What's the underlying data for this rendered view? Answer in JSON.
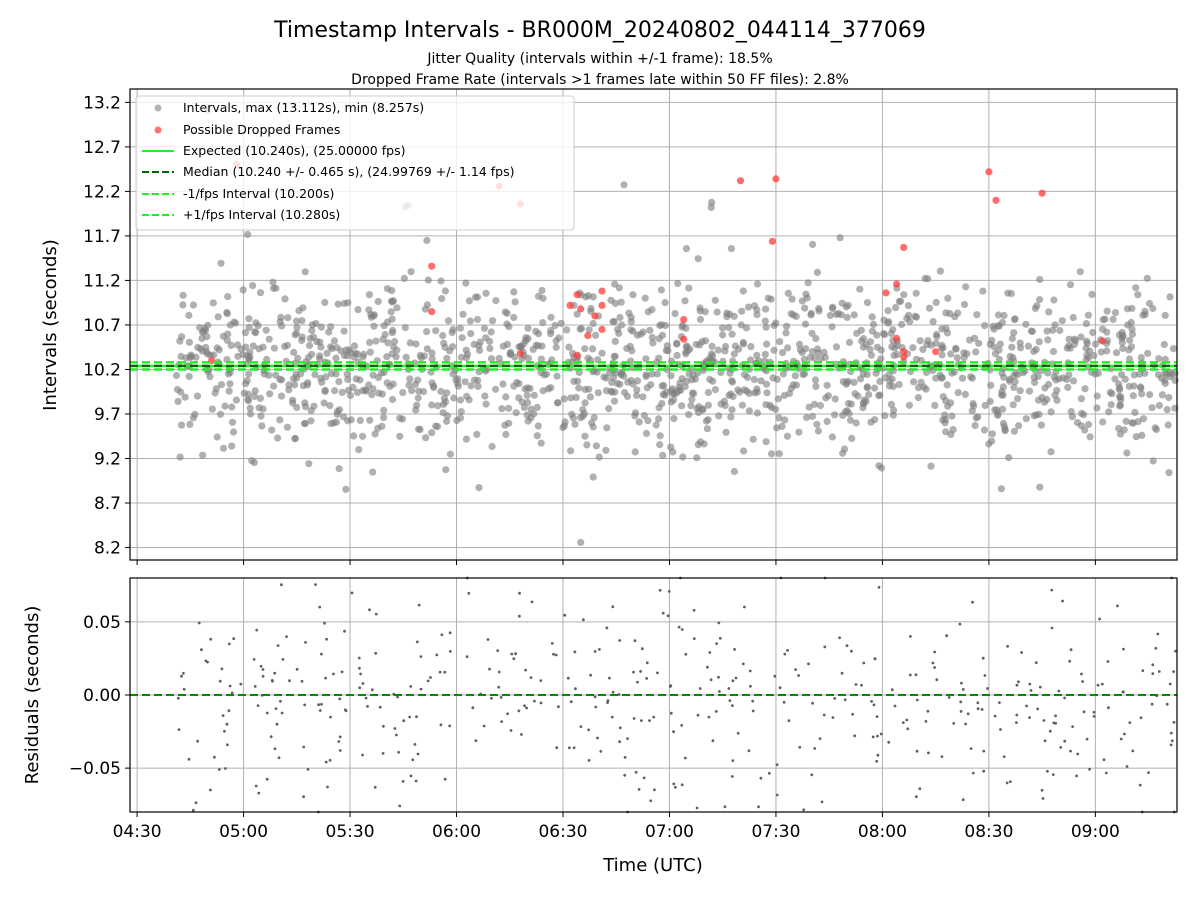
{
  "chart_data": [
    {
      "type": "scatter",
      "panel": "intervals",
      "title": "Timestamp Intervals - BR000M_20240802_044114_377069",
      "subtitle": [
        "Jitter Quality (intervals within +/-1 frame): 18.5%",
        "Dropped Frame Rate (intervals >1 frames late within 50 FF files): 2.8%"
      ],
      "xlabel": "",
      "ylabel": "Intervals (seconds)",
      "x_time_range": [
        "04:28",
        "09:23"
      ],
      "ylim": [
        8.06,
        13.35
      ],
      "yticks": [
        "8.2",
        "8.7",
        "9.2",
        "9.7",
        "10.2",
        "10.7",
        "11.2",
        "11.7",
        "12.2",
        "12.7",
        "13.2"
      ],
      "ytick_values": [
        8.2,
        8.7,
        9.2,
        9.7,
        10.2,
        10.7,
        11.2,
        11.7,
        12.2,
        12.7,
        13.2
      ],
      "grid": true,
      "legend_position": "top-left",
      "legend": [
        {
          "label": "Intervals, max (13.112s), min (8.257s)",
          "marker": "circle",
          "color": "#808080"
        },
        {
          "label": "Possible Dropped Frames",
          "marker": "circle",
          "color": "#ff3b3b"
        },
        {
          "label": "Expected (10.240s), (25.00000 fps)",
          "line": "solid",
          "color": "#22ee22"
        },
        {
          "label": "Median (10.240 +/- 0.465 s), (24.99769 +/- 1.14 fps)",
          "line": "dashed",
          "color": "#006400"
        },
        {
          "label": "-1/fps Interval (10.200s)",
          "line": "dashed",
          "color": "#22ee22"
        },
        {
          "label": "+1/fps Interval (10.280s)",
          "line": "dashed",
          "color": "#22ee22"
        }
      ],
      "lines": [
        {
          "name": "Expected",
          "y": 10.24,
          "style": "solid",
          "color": "#22ee22"
        },
        {
          "name": "Median",
          "y": 10.24,
          "style": "dashed",
          "color": "#006400"
        },
        {
          "name": "-1/fps Interval",
          "y": 10.2,
          "style": "dashed",
          "color": "#22ee22"
        },
        {
          "name": "+1/fps Interval",
          "y": 10.28,
          "style": "dashed",
          "color": "#22ee22"
        }
      ],
      "series": [
        {
          "name": "Intervals",
          "color": "#808080",
          "x_range": [
            "04:41",
            "09:23"
          ],
          "y_min": 8.257,
          "y_max": 13.112,
          "center": 10.24,
          "spread": 0.465
        },
        {
          "name": "Possible Dropped Frames",
          "color": "#ff3b3b",
          "points": [
            {
              "x": "04:51",
              "y": 10.3
            },
            {
              "x": "04:58",
              "y": 12.5
            },
            {
              "x": "05:53",
              "y": 11.36
            },
            {
              "x": "05:53",
              "y": 10.85
            },
            {
              "x": "06:12",
              "y": 12.26
            },
            {
              "x": "06:18",
              "y": 10.38
            },
            {
              "x": "06:18",
              "y": 12.06
            },
            {
              "x": "06:32",
              "y": 10.92
            },
            {
              "x": "06:34",
              "y": 11.04
            },
            {
              "x": "06:35",
              "y": 10.88
            },
            {
              "x": "06:34",
              "y": 10.36
            },
            {
              "x": "06:37",
              "y": 10.58
            },
            {
              "x": "06:39",
              "y": 10.8
            },
            {
              "x": "06:41",
              "y": 10.92
            },
            {
              "x": "06:41",
              "y": 11.08
            },
            {
              "x": "06:41",
              "y": 10.65
            },
            {
              "x": "07:04",
              "y": 10.76
            },
            {
              "x": "07:04",
              "y": 10.54
            },
            {
              "x": "07:20",
              "y": 12.32
            },
            {
              "x": "07:29",
              "y": 11.64
            },
            {
              "x": "07:30",
              "y": 12.34
            },
            {
              "x": "08:04",
              "y": 11.16
            },
            {
              "x": "08:04",
              "y": 10.55
            },
            {
              "x": "08:06",
              "y": 10.34
            },
            {
              "x": "08:06",
              "y": 10.4
            },
            {
              "x": "08:06",
              "y": 11.57
            },
            {
              "x": "08:01",
              "y": 11.06
            },
            {
              "x": "08:15",
              "y": 10.4
            },
            {
              "x": "08:30",
              "y": 12.42
            },
            {
              "x": "08:32",
              "y": 12.1
            },
            {
              "x": "08:45",
              "y": 12.18
            },
            {
              "x": "09:02",
              "y": 10.52
            }
          ]
        }
      ]
    },
    {
      "type": "scatter",
      "panel": "residuals",
      "xlabel": "Time (UTC)",
      "ylabel": "Residuals (seconds)",
      "x_time_range": [
        "04:28",
        "09:23"
      ],
      "xticks": [
        "04:30",
        "05:00",
        "05:30",
        "06:00",
        "06:30",
        "07:00",
        "07:30",
        "08:00",
        "08:30",
        "09:00"
      ],
      "ylim": [
        -0.08,
        0.08
      ],
      "yticks": [
        "−0.05",
        "0.00",
        "0.05"
      ],
      "ytick_values": [
        -0.05,
        0.0,
        0.05
      ],
      "grid": true,
      "lines": [
        {
          "name": "Zero",
          "y": 0.0,
          "style": "dashed",
          "color": "#008800"
        }
      ],
      "series": [
        {
          "name": "Residuals",
          "color": "#606060",
          "x_range": [
            "04:41",
            "09:23"
          ],
          "y_min": -0.08,
          "y_max": 0.08
        }
      ]
    }
  ]
}
